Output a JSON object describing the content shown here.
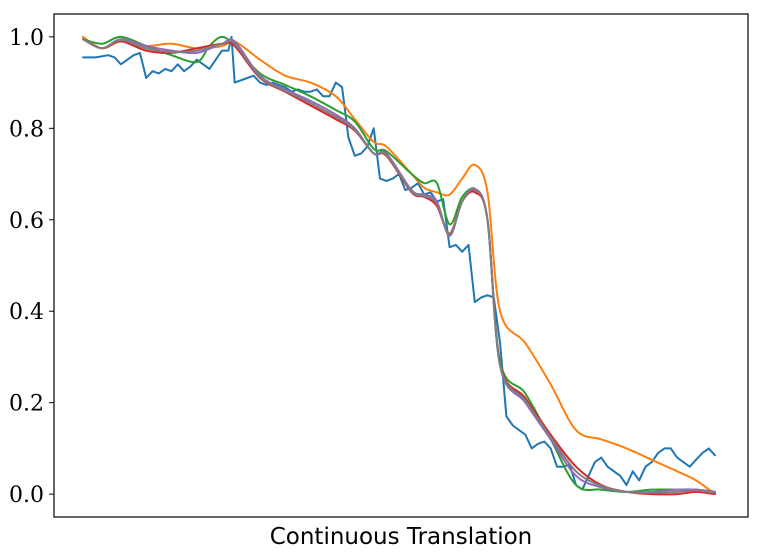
{
  "chart_data": {
    "type": "line",
    "title": "",
    "xlabel": "Continuous Translation",
    "ylabel": "",
    "xlim": [
      0,
      1
    ],
    "ylim": [
      -0.05,
      1.05
    ],
    "yticks": [
      0.0,
      0.2,
      0.4,
      0.6,
      0.8,
      1.0
    ],
    "ytick_labels": [
      "0.0",
      "0.2",
      "0.4",
      "0.6",
      "0.8",
      "1.0"
    ],
    "xticks_visible": false,
    "grid": false,
    "legend": "none",
    "series": [
      {
        "color": "#1f77b4",
        "x": [
          0.0,
          0.02,
          0.04,
          0.05,
          0.06,
          0.08,
          0.09,
          0.1,
          0.11,
          0.12,
          0.13,
          0.14,
          0.15,
          0.16,
          0.17,
          0.18,
          0.19,
          0.2,
          0.21,
          0.22,
          0.23,
          0.235,
          0.24,
          0.26,
          0.27,
          0.28,
          0.29,
          0.3,
          0.31,
          0.32,
          0.33,
          0.34,
          0.35,
          0.36,
          0.37,
          0.38,
          0.39,
          0.4,
          0.41,
          0.42,
          0.43,
          0.44,
          0.45,
          0.46,
          0.47,
          0.48,
          0.49,
          0.5,
          0.51,
          0.52,
          0.53,
          0.54,
          0.55,
          0.56,
          0.57,
          0.58,
          0.59,
          0.6,
          0.61,
          0.62,
          0.63,
          0.64,
          0.65,
          0.66,
          0.67,
          0.68,
          0.69,
          0.7,
          0.71,
          0.72,
          0.73,
          0.74,
          0.75,
          0.76,
          0.77,
          0.78,
          0.79,
          0.8,
          0.81,
          0.82,
          0.83,
          0.84,
          0.85,
          0.86,
          0.87,
          0.88,
          0.89,
          0.9,
          0.91,
          0.92,
          0.93,
          0.94,
          0.95,
          0.96,
          0.97,
          0.98,
          0.99,
          1.0
        ],
        "y": [
          0.955,
          0.955,
          0.96,
          0.955,
          0.94,
          0.96,
          0.965,
          0.91,
          0.925,
          0.92,
          0.93,
          0.925,
          0.94,
          0.925,
          0.935,
          0.95,
          0.94,
          0.93,
          0.95,
          0.97,
          0.97,
          1.0,
          0.9,
          0.91,
          0.915,
          0.9,
          0.895,
          0.9,
          0.895,
          0.89,
          0.88,
          0.885,
          0.88,
          0.88,
          0.885,
          0.87,
          0.87,
          0.9,
          0.89,
          0.78,
          0.74,
          0.745,
          0.76,
          0.8,
          0.69,
          0.685,
          0.69,
          0.7,
          0.665,
          0.67,
          0.68,
          0.655,
          0.66,
          0.64,
          0.645,
          0.54,
          0.545,
          0.53,
          0.545,
          0.42,
          0.43,
          0.435,
          0.43,
          0.33,
          0.17,
          0.15,
          0.14,
          0.13,
          0.1,
          0.11,
          0.115,
          0.1,
          0.06,
          0.06,
          0.065,
          0.02,
          0.01,
          0.04,
          0.07,
          0.08,
          0.06,
          0.05,
          0.04,
          0.02,
          0.05,
          0.03,
          0.06,
          0.07,
          0.09,
          0.1,
          0.1,
          0.08,
          0.07,
          0.06,
          0.075,
          0.09,
          0.1,
          0.085
        ]
      },
      {
        "color": "#ff7f0e",
        "x": [
          0.0,
          0.03,
          0.06,
          0.1,
          0.14,
          0.18,
          0.22,
          0.24,
          0.28,
          0.32,
          0.36,
          0.4,
          0.43,
          0.46,
          0.48,
          0.52,
          0.54,
          0.56,
          0.58,
          0.6,
          0.62,
          0.64,
          0.66,
          0.7,
          0.74,
          0.78,
          0.82,
          0.86,
          0.9,
          0.94,
          0.97,
          1.0
        ],
        "y": [
          1.0,
          0.975,
          0.99,
          0.98,
          0.985,
          0.975,
          0.98,
          0.99,
          0.95,
          0.915,
          0.9,
          0.87,
          0.82,
          0.77,
          0.76,
          0.7,
          0.67,
          0.66,
          0.655,
          0.69,
          0.72,
          0.66,
          0.4,
          0.33,
          0.24,
          0.14,
          0.12,
          0.1,
          0.075,
          0.05,
          0.03,
          0.0
        ]
      },
      {
        "color": "#2ca02c",
        "x": [
          0.0,
          0.03,
          0.06,
          0.1,
          0.14,
          0.18,
          0.2,
          0.22,
          0.24,
          0.28,
          0.32,
          0.36,
          0.4,
          0.43,
          0.46,
          0.48,
          0.52,
          0.54,
          0.56,
          0.58,
          0.6,
          0.62,
          0.64,
          0.66,
          0.7,
          0.74,
          0.78,
          0.82,
          0.86,
          0.9,
          0.94,
          0.97,
          1.0
        ],
        "y": [
          0.995,
          0.985,
          1.0,
          0.98,
          0.96,
          0.945,
          0.98,
          1.0,
          0.98,
          0.92,
          0.895,
          0.87,
          0.84,
          0.815,
          0.755,
          0.75,
          0.7,
          0.68,
          0.68,
          0.59,
          0.65,
          0.665,
          0.6,
          0.29,
          0.22,
          0.12,
          0.02,
          0.01,
          0.005,
          0.01,
          0.01,
          0.01,
          0.005
        ]
      },
      {
        "color": "#d62728",
        "x": [
          0.0,
          0.03,
          0.06,
          0.1,
          0.14,
          0.18,
          0.22,
          0.24,
          0.28,
          0.32,
          0.36,
          0.4,
          0.43,
          0.46,
          0.48,
          0.52,
          0.54,
          0.56,
          0.58,
          0.6,
          0.62,
          0.64,
          0.66,
          0.7,
          0.74,
          0.78,
          0.82,
          0.86,
          0.9,
          0.94,
          0.97,
          1.0
        ],
        "y": [
          0.995,
          0.975,
          0.99,
          0.97,
          0.965,
          0.975,
          0.985,
          0.98,
          0.91,
          0.88,
          0.85,
          0.82,
          0.795,
          0.745,
          0.74,
          0.66,
          0.65,
          0.63,
          0.57,
          0.64,
          0.66,
          0.6,
          0.285,
          0.21,
          0.13,
          0.06,
          0.02,
          0.005,
          0.0,
          0.0,
          0.005,
          0.0
        ]
      },
      {
        "color": "#9467bd",
        "x": [
          0.0,
          0.03,
          0.06,
          0.1,
          0.14,
          0.18,
          0.22,
          0.24,
          0.28,
          0.32,
          0.36,
          0.4,
          0.43,
          0.46,
          0.48,
          0.52,
          0.54,
          0.56,
          0.58,
          0.6,
          0.62,
          0.64,
          0.66,
          0.7,
          0.74,
          0.78,
          0.82,
          0.86,
          0.9,
          0.94,
          0.97,
          1.0
        ],
        "y": [
          0.995,
          0.975,
          0.995,
          0.98,
          0.97,
          0.965,
          0.985,
          0.99,
          0.915,
          0.885,
          0.86,
          0.83,
          0.8,
          0.745,
          0.745,
          0.665,
          0.655,
          0.64,
          0.565,
          0.64,
          0.665,
          0.6,
          0.28,
          0.2,
          0.12,
          0.04,
          0.015,
          0.005,
          0.005,
          0.01,
          0.01,
          0.005
        ]
      },
      {
        "color": "#7f7f7f",
        "x": [
          0.0,
          0.03,
          0.06,
          0.1,
          0.14,
          0.18,
          0.22,
          0.24,
          0.28,
          0.32,
          0.36,
          0.4,
          0.43,
          0.46,
          0.48,
          0.52,
          0.54,
          0.56,
          0.58,
          0.6,
          0.62,
          0.64,
          0.66,
          0.7,
          0.74,
          0.78,
          0.82,
          0.86,
          0.9,
          0.94,
          0.97,
          1.0
        ],
        "y": [
          0.995,
          0.975,
          0.993,
          0.975,
          0.967,
          0.97,
          0.985,
          0.985,
          0.912,
          0.882,
          0.855,
          0.825,
          0.797,
          0.745,
          0.742,
          0.662,
          0.652,
          0.635,
          0.568,
          0.64,
          0.668,
          0.6,
          0.282,
          0.205,
          0.125,
          0.05,
          0.018,
          0.005,
          0.003,
          0.005,
          0.008,
          0.003
        ]
      }
    ]
  }
}
